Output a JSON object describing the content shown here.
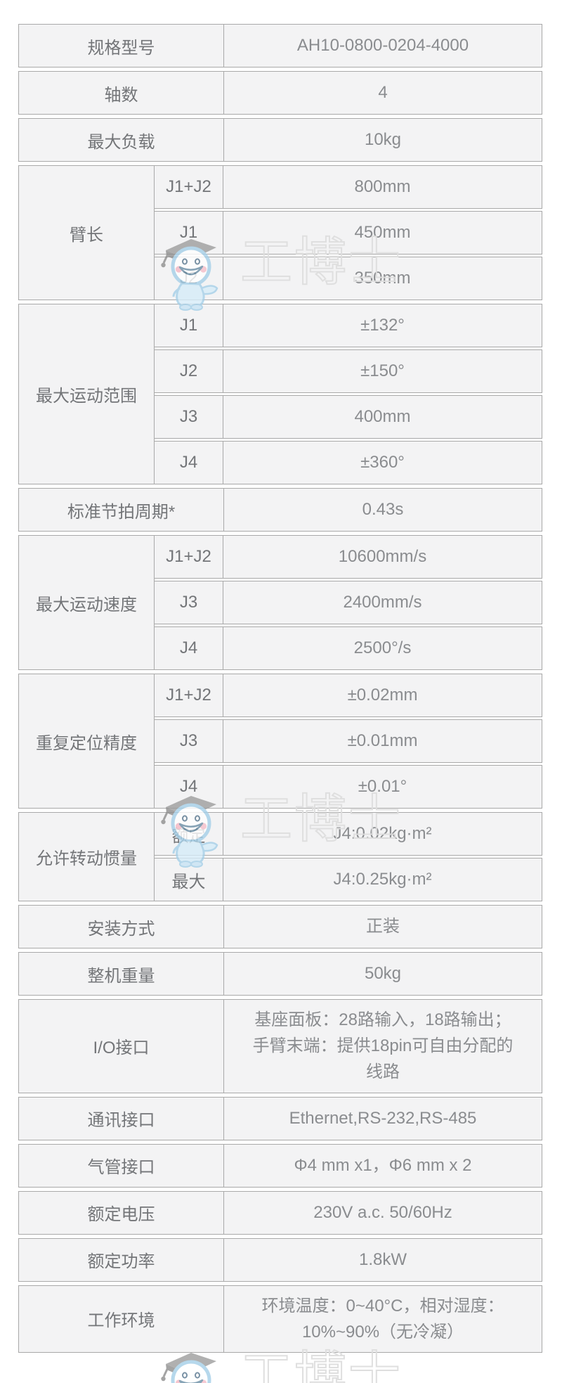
{
  "page": {
    "background": "#ffffff"
  },
  "colors": {
    "cell_background": "#f3f3f4",
    "cell_border": "#a9a9a9",
    "label_text": "#737578",
    "value_text": "#8a8c8f",
    "watermark_outline": "#dedede",
    "mascot_blue": "#a5cfe8"
  },
  "watermark": {
    "text": "工博士",
    "mascot": "doctor-cap-mascot-icon",
    "instances": 3
  },
  "table": {
    "rows": [
      {
        "type": "simple",
        "label": "规格型号",
        "value": "AH10-0800-0204-4000"
      },
      {
        "type": "simple",
        "label": "轴数",
        "value": "4"
      },
      {
        "type": "simple",
        "label": "最大负载",
        "value": "10kg"
      },
      {
        "type": "group",
        "label": "臂长",
        "subrows": [
          {
            "label": "J1+J2",
            "value": "800mm"
          },
          {
            "label": "J1",
            "value": "450mm"
          },
          {
            "label": "J2",
            "value": "350mm"
          }
        ]
      },
      {
        "type": "group",
        "label": "最大运动范围",
        "subrows": [
          {
            "label": "J1",
            "value": "±132°"
          },
          {
            "label": "J2",
            "value": "±150°"
          },
          {
            "label": "J3",
            "value": "400mm"
          },
          {
            "label": "J4",
            "value": "±360°"
          }
        ]
      },
      {
        "type": "simple",
        "label": "标准节拍周期*",
        "value": "0.43s"
      },
      {
        "type": "group",
        "label": "最大运动速度",
        "subrows": [
          {
            "label": "J1+J2",
            "value": "10600mm/s"
          },
          {
            "label": "J3",
            "value": "2400mm/s"
          },
          {
            "label": "J4",
            "value": "2500°/s"
          }
        ]
      },
      {
        "type": "group",
        "label": "重复定位精度",
        "subrows": [
          {
            "label": "J1+J2",
            "value": "±0.02mm"
          },
          {
            "label": "J3",
            "value": "±0.01mm"
          },
          {
            "label": "J4",
            "value": "±0.01°"
          }
        ]
      },
      {
        "type": "group",
        "label": "允许转动惯量",
        "subrows": [
          {
            "label": "额定",
            "value": "J4:0.02kg·m²"
          },
          {
            "label": "最大",
            "value": "J4:0.25kg·m²"
          }
        ]
      },
      {
        "type": "simple",
        "label": "安装方式",
        "value": "正装"
      },
      {
        "type": "simple",
        "label": "整机重量",
        "value": "50kg"
      },
      {
        "type": "simple",
        "label": "I/O接口",
        "value": "基座面板：28路输入，18路输出；\n手臂末端：提供18pin可自由分配的\n线路"
      },
      {
        "type": "simple",
        "label": "通讯接口",
        "value": "Ethernet,RS-232,RS-485"
      },
      {
        "type": "simple",
        "label": "气管接口",
        "value": "Φ4 mm x1，Φ6 mm x 2"
      },
      {
        "type": "simple",
        "label": "额定电压",
        "value": "230V a.c. 50/60Hz"
      },
      {
        "type": "simple",
        "label": "额定功率",
        "value": "1.8kW"
      },
      {
        "type": "simple",
        "label": "工作环境",
        "value": "环境温度：0~40°C，相对湿度：\n10%~90%（无冷凝）"
      }
    ]
  }
}
